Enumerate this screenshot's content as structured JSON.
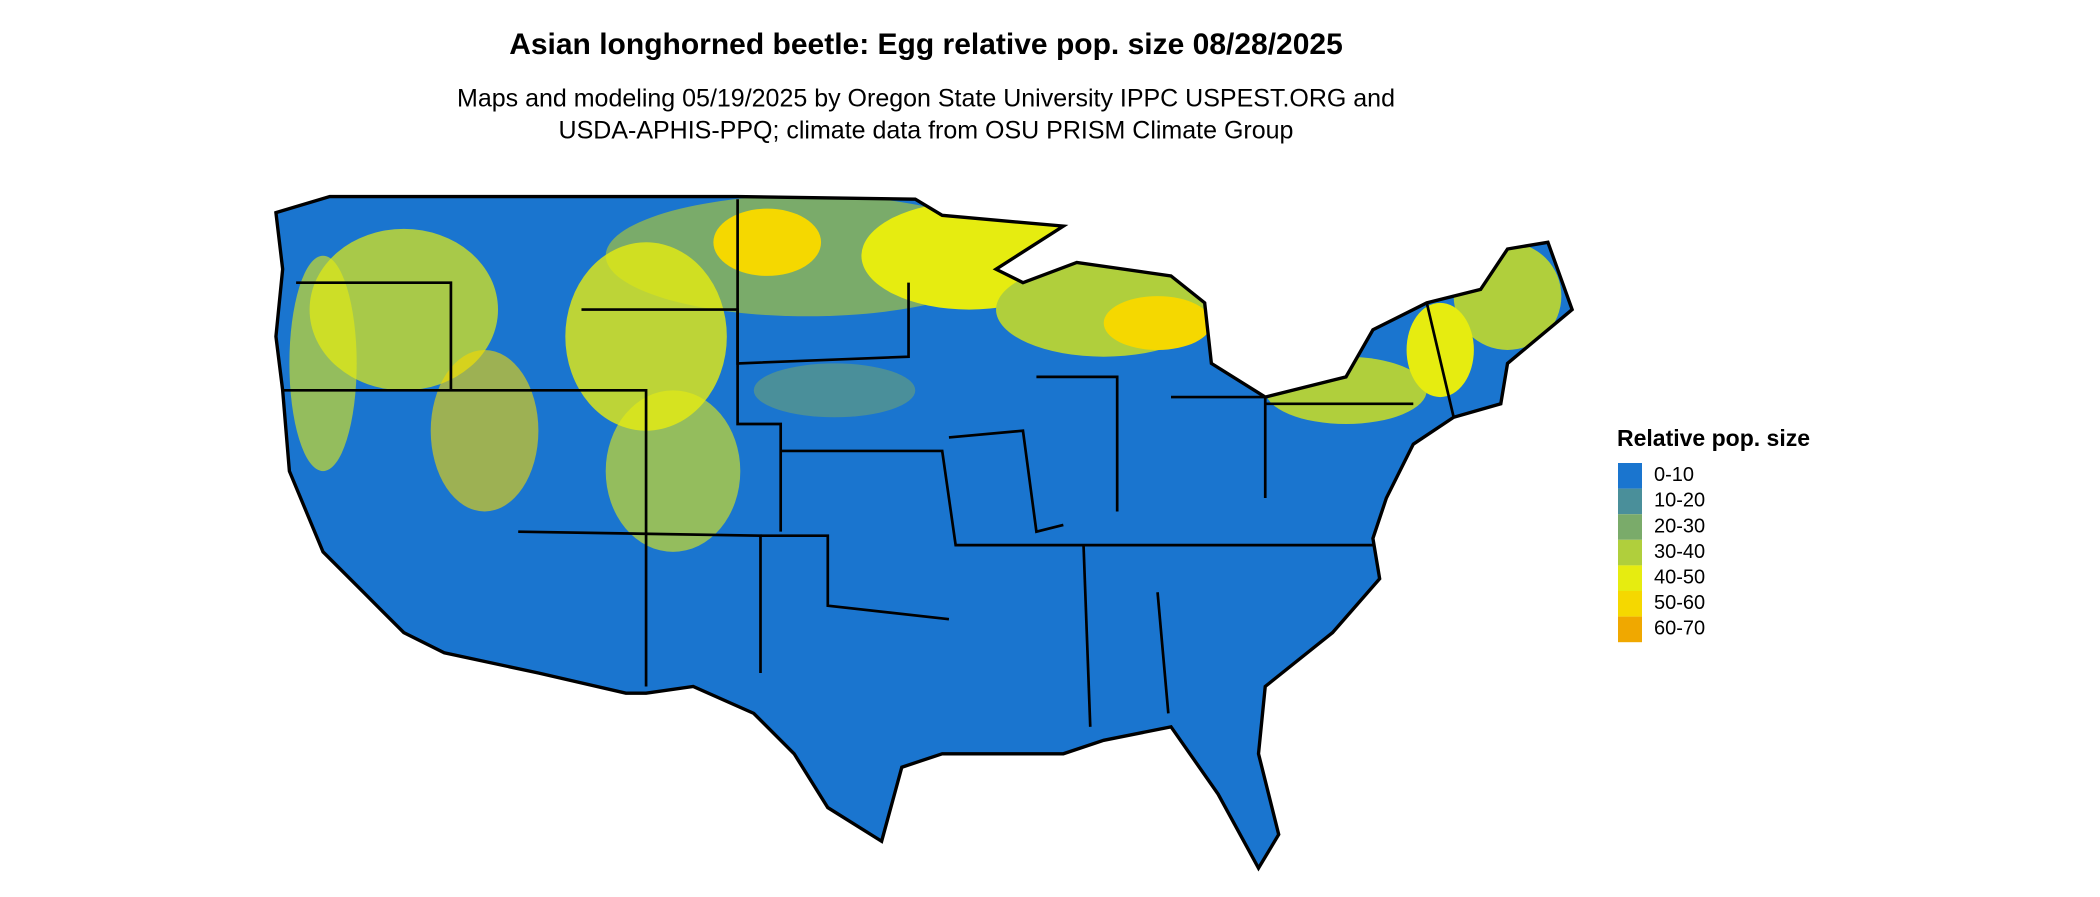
{
  "title": "Asian longhorned beetle: Egg relative pop. size 08/28/2025",
  "subtitle": [
    "Maps and modeling 05/19/2025 by Oregon State University IPPC USPEST.ORG and",
    "USDA-APHIS-PPQ; climate data from OSU PRISM Climate Group"
  ],
  "legend": {
    "title": "Relative pop. size",
    "items": [
      {
        "label": "0-10",
        "color": "#1a75cf"
      },
      {
        "label": "10-20",
        "color": "#4a8f9a"
      },
      {
        "label": "20-30",
        "color": "#7aab6a"
      },
      {
        "label": "30-40",
        "color": "#b0cf3c"
      },
      {
        "label": "40-50",
        "color": "#e6ec10"
      },
      {
        "label": "50-60",
        "color": "#f5d800"
      },
      {
        "label": "60-70",
        "color": "#f0a800"
      }
    ]
  }
}
